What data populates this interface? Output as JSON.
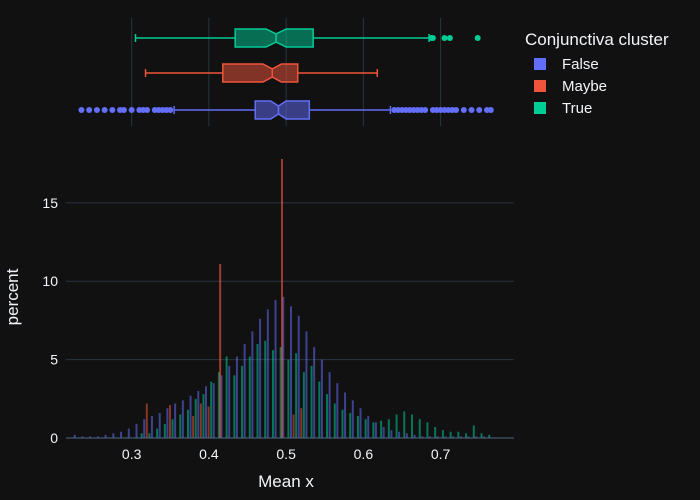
{
  "chart_data": {
    "type": "histogram-with-marginal-box",
    "xlabel": "Mean x",
    "ylabel": "percent",
    "xlim": [
      0.215,
      0.795
    ],
    "ylim": [
      0,
      18.5
    ],
    "xticks": [
      "0.3",
      "0.4",
      "0.5",
      "0.6",
      "0.7"
    ],
    "xtick_values": [
      0.3,
      0.4,
      0.5,
      0.6,
      0.7
    ],
    "yticks": [
      "0",
      "5",
      "10",
      "15"
    ],
    "ytick_values": [
      0,
      5,
      10,
      15
    ],
    "grid": true,
    "legend": {
      "title": "Conjunctiva cluster",
      "position": "top-right",
      "entries": [
        "False",
        "Maybe",
        "True"
      ]
    },
    "bin_start": 0.225,
    "bin_width": 0.01,
    "series": [
      {
        "name": "False",
        "color": "#636efa",
        "values": [
          0.2,
          0.1,
          0.1,
          0.1,
          0.2,
          0.3,
          0.4,
          0.6,
          0.9,
          1.2,
          1.4,
          1.6,
          1.9,
          2.2,
          2.4,
          2.7,
          3.0,
          3.3,
          3.5,
          4.0,
          4.6,
          5.2,
          6.0,
          6.8,
          7.6,
          8.2,
          8.8,
          9.0,
          8.4,
          7.8,
          6.8,
          5.8,
          5.0,
          4.2,
          3.5,
          2.9,
          2.4,
          1.9,
          1.4,
          1.0,
          0.7,
          0.5,
          0.4,
          0.3,
          0.2,
          0.1,
          0.1,
          0.1,
          0.1,
          0.1,
          0.1,
          0.1,
          0.1,
          0.1
        ],
        "box": {
          "lowerfence": 0.355,
          "q1": 0.46,
          "median": 0.49,
          "q3": 0.53,
          "upperfence": 0.635,
          "notch": 0.01,
          "outliers": [
            0.235,
            0.245,
            0.255,
            0.265,
            0.275,
            0.285,
            0.29,
            0.3,
            0.31,
            0.315,
            0.32,
            0.33,
            0.335,
            0.34,
            0.345,
            0.35,
            0.64,
            0.645,
            0.65,
            0.655,
            0.66,
            0.665,
            0.67,
            0.675,
            0.68,
            0.69,
            0.695,
            0.7,
            0.705,
            0.71,
            0.715,
            0.72,
            0.73,
            0.74,
            0.75,
            0.76,
            0.765
          ]
        }
      },
      {
        "name": "Maybe",
        "color": "#ef553b",
        "values": [
          0,
          0,
          0,
          0,
          0,
          0,
          0,
          0,
          0,
          2.2,
          0,
          0,
          2.1,
          0,
          0,
          1.4,
          2.2,
          2.0,
          0,
          0,
          0,
          0,
          0,
          0,
          0,
          0,
          0,
          0,
          1.5,
          1.9,
          0,
          0,
          0,
          0,
          0,
          0,
          0,
          0,
          0,
          0,
          0,
          0,
          0,
          0,
          0,
          0,
          0,
          0,
          0,
          0,
          0,
          0,
          0,
          0
        ],
        "box": {
          "lowerfence": 0.318,
          "q1": 0.418,
          "median": 0.482,
          "q3": 0.515,
          "upperfence": 0.618,
          "notch": 0.012,
          "outliers": []
        }
      },
      {
        "name": "True",
        "color": "#00cc96",
        "values": [
          0,
          0,
          0,
          0,
          0,
          0,
          0,
          0,
          0.3,
          0.3,
          0.6,
          0.9,
          1.2,
          1.5,
          1.8,
          2.5,
          2.8,
          3.6,
          4.2,
          5.2,
          4.0,
          4.6,
          5.2,
          6.0,
          6.2,
          5.6,
          5.8,
          5.0,
          5.4,
          4.2,
          4.6,
          3.6,
          2.8,
          2.2,
          1.8,
          1.6,
          1.4,
          1.2,
          1.0,
          1.1,
          1.2,
          1.5,
          1.7,
          1.5,
          1.2,
          1.0,
          0.7,
          0.5,
          0.4,
          0.4,
          0.3,
          0.8,
          0.3,
          0.2
        ],
        "box": {
          "lowerfence": 0.305,
          "q1": 0.434,
          "median": 0.487,
          "q3": 0.535,
          "upperfence": 0.685,
          "notch": 0.013,
          "outliers": [
            0.688,
            0.69,
            0.705,
            0.712,
            0.748
          ]
        }
      }
    ],
    "annotations": [
      {
        "series": "Maybe",
        "x": 0.41,
        "y": 11.1
      },
      {
        "series": "Maybe",
        "x": 0.49,
        "y": 17.8
      }
    ]
  }
}
